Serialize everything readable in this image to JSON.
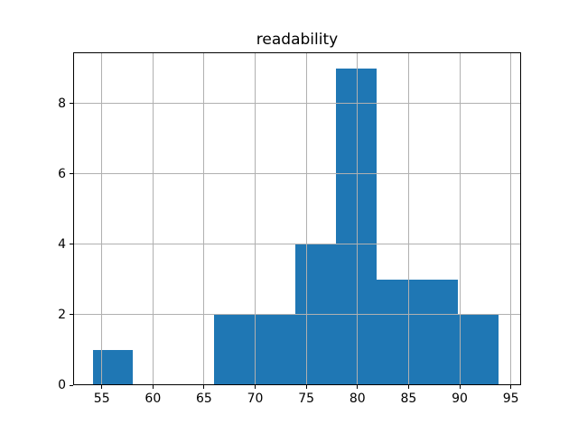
{
  "figure": {
    "background": "#ffffff"
  },
  "chart_data": {
    "type": "bar",
    "subtype": "histogram",
    "title": "readability",
    "xlabel": "",
    "ylabel": "",
    "bin_edges": [
      54.1,
      58.07,
      62.04,
      66.01,
      69.98,
      73.95,
      77.92,
      81.89,
      85.86,
      89.83,
      93.8
    ],
    "counts": [
      1,
      0,
      0,
      2,
      2,
      4,
      9,
      3,
      3,
      2
    ],
    "x_ticks": [
      55,
      60,
      65,
      70,
      75,
      80,
      85,
      90,
      95
    ],
    "y_ticks": [
      0,
      2,
      4,
      6,
      8
    ],
    "xlim": [
      52.2,
      96.0
    ],
    "ylim": [
      0,
      9.45
    ],
    "grid": true,
    "grid_over_bars": true,
    "legend": "none",
    "colors": {
      "bar_fill": "#1f77b4",
      "grid_color": "#b0b0b0",
      "spine_color": "#000000",
      "text_color": "#000000",
      "background": "#ffffff"
    }
  }
}
